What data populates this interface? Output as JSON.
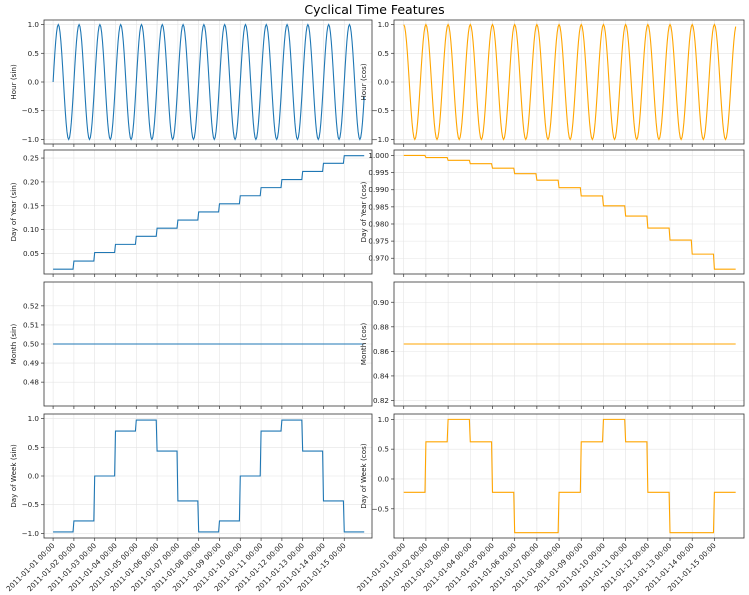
{
  "figure": {
    "title": "Cyclical Time Features"
  },
  "x_ticks": [
    "2011-01-01 00:00",
    "2011-01-02 00:00",
    "2011-01-03 00:00",
    "2011-01-04 00:00",
    "2011-01-05 00:00",
    "2011-01-06 00:00",
    "2011-01-07 00:00",
    "2011-01-08 00:00",
    "2011-01-09 00:00",
    "2011-01-10 00:00",
    "2011-01-11 00:00",
    "2011-01-12 00:00",
    "2011-01-13 00:00",
    "2011-01-14 00:00",
    "2011-01-15 00:00"
  ],
  "chart_data": [
    {
      "type": "line",
      "xlabel": "",
      "ylabel": "Hour (sin)",
      "color": "#1f77b4",
      "x_range": [
        "2011-01-01 00:00",
        "2011-01-16 00:00"
      ],
      "ylim": [
        -1.08,
        1.08
      ],
      "yticks": [
        -1.0,
        -0.5,
        0.0,
        0.5,
        1.0
      ],
      "ytick_labels": [
        "−1.0",
        "−0.5",
        "0.0",
        "0.5",
        "1.0"
      ],
      "series": [
        {
          "function": "sin(2π·hour/24)",
          "hourly_step": true
        }
      ]
    },
    {
      "type": "line",
      "xlabel": "",
      "ylabel": "Hour (cos)",
      "color": "#ffa500",
      "x_range": [
        "2011-01-01 00:00",
        "2011-01-16 00:00"
      ],
      "ylim": [
        -1.08,
        1.08
      ],
      "yticks": [
        -1.0,
        -0.5,
        0.0,
        0.5,
        1.0
      ],
      "ytick_labels": [
        "−1.0",
        "−0.5",
        "0.0",
        "0.5",
        "1.0"
      ],
      "series": [
        {
          "function": "cos(2π·hour/24)",
          "hourly_step": true
        }
      ]
    },
    {
      "type": "line",
      "xlabel": "",
      "ylabel": "Day of Year (sin)",
      "color": "#1f77b4",
      "x_range": [
        "2011-01-01 00:00",
        "2011-01-16 00:00"
      ],
      "ylim": [
        0.0069,
        0.2669
      ],
      "yticks": [
        0.05,
        0.1,
        0.15,
        0.2,
        0.25
      ],
      "ytick_labels": [
        "0.05",
        "0.10",
        "0.15",
        "0.20",
        "0.25"
      ],
      "series": [
        {
          "step_values": [
            0.017,
            0.034,
            0.052,
            0.069,
            0.086,
            0.103,
            0.12,
            0.137,
            0.154,
            0.171,
            0.188,
            0.205,
            0.222,
            0.239,
            0.255
          ]
        }
      ]
    },
    {
      "type": "line",
      "xlabel": "",
      "ylabel": "Day of Year (cos)",
      "color": "#ffa500",
      "x_range": [
        "2011-01-01 00:00",
        "2011-01-16 00:00"
      ],
      "ylim": [
        0.9654,
        1.0016
      ],
      "yticks": [
        0.97,
        0.975,
        0.98,
        0.985,
        0.99,
        0.995,
        1.0
      ],
      "ytick_labels": [
        "0.970",
        "0.975",
        "0.980",
        "0.985",
        "0.990",
        "0.995",
        "1.000"
      ],
      "series": [
        {
          "step_values": [
            1.0,
            0.9994,
            0.9986,
            0.9976,
            0.9963,
            0.9947,
            0.9928,
            0.9906,
            0.9882,
            0.9853,
            0.9823,
            0.9788,
            0.9753,
            0.9712,
            0.9668
          ]
        }
      ]
    },
    {
      "type": "line",
      "xlabel": "",
      "ylabel": "Month (sin)",
      "color": "#1f77b4",
      "x_range": [
        "2011-01-01 00:00",
        "2011-01-16 00:00"
      ],
      "ylim": [
        0.4675,
        0.5325
      ],
      "yticks": [
        0.48,
        0.49,
        0.5,
        0.51,
        0.52
      ],
      "ytick_labels": [
        "0.48",
        "0.49",
        "0.50",
        "0.51",
        "0.52"
      ],
      "series": [
        {
          "constant": 0.5
        }
      ]
    },
    {
      "type": "line",
      "xlabel": "",
      "ylabel": "Month (cos)",
      "color": "#ffa500",
      "x_range": [
        "2011-01-01 00:00",
        "2011-01-16 00:00"
      ],
      "ylim": [
        0.8155,
        0.9165
      ],
      "yticks": [
        0.82,
        0.84,
        0.86,
        0.88,
        0.9
      ],
      "ytick_labels": [
        "0.82",
        "0.84",
        "0.86",
        "0.88",
        "0.90"
      ],
      "series": [
        {
          "constant": 0.866
        }
      ]
    },
    {
      "type": "line",
      "xlabel": "",
      "ylabel": "Day of Week (sin)",
      "color": "#1f77b4",
      "x_range": [
        "2011-01-01 00:00",
        "2011-01-16 00:00"
      ],
      "ylim": [
        -1.08,
        1.08
      ],
      "yticks": [
        -1.0,
        -0.5,
        0.0,
        0.5,
        1.0
      ],
      "ytick_labels": [
        "−1.0",
        "−0.5",
        "0.0",
        "0.5",
        "1.0"
      ],
      "series": [
        {
          "step_values": [
            -0.975,
            -0.782,
            0.0,
            0.782,
            0.975,
            0.434,
            -0.434,
            -0.975,
            -0.782,
            0.0,
            0.782,
            0.975,
            0.434,
            -0.434,
            -0.975
          ]
        }
      ]
    },
    {
      "type": "line",
      "xlabel": "",
      "ylabel": "Day of Week (cos)",
      "color": "#ffa500",
      "x_range": [
        "2011-01-01 00:00",
        "2011-01-16 00:00"
      ],
      "ylim": [
        -0.99,
        1.09
      ],
      "yticks": [
        -0.5,
        0.0,
        0.5,
        1.0
      ],
      "ytick_labels": [
        "−0.5",
        "0.0",
        "0.5",
        "1.0"
      ],
      "series": [
        {
          "step_values": [
            -0.223,
            0.623,
            1.0,
            0.623,
            -0.223,
            -0.901,
            -0.901,
            -0.223,
            0.623,
            1.0,
            0.623,
            -0.223,
            -0.901,
            -0.901,
            -0.223
          ]
        }
      ]
    }
  ]
}
